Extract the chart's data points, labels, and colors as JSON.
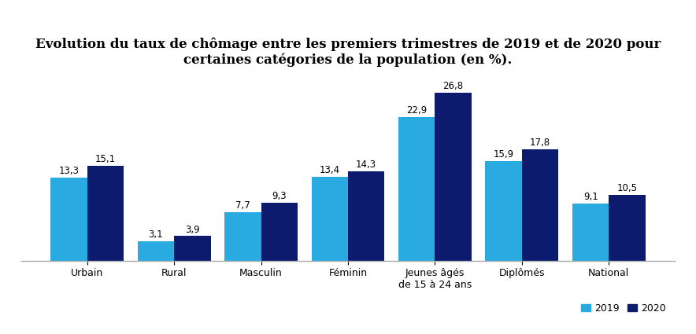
{
  "title": "Evolution du taux de chômage entre les premiers trimestres de 2019 et de 2020 pour\ncertaines catégories de la population (en %).",
  "categories": [
    "Urbain",
    "Rural",
    "Masculin",
    "Féminin",
    "Jeunes âgés\nde 15 à 24 ans",
    "Diplômés",
    "National"
  ],
  "values_2019": [
    13.3,
    3.1,
    7.7,
    13.4,
    22.9,
    15.9,
    9.1
  ],
  "values_2020": [
    15.1,
    3.9,
    9.3,
    14.3,
    26.8,
    17.8,
    10.5
  ],
  "color_2019": "#29ABE2",
  "color_2020": "#0D1B6E",
  "background_color": "#FFFFFF",
  "bar_width": 0.42,
  "label_2019": "2019",
  "label_2020": "2020",
  "ylim": [
    0,
    31
  ],
  "title_fontsize": 12,
  "tick_fontsize": 9,
  "value_fontsize": 8.5
}
